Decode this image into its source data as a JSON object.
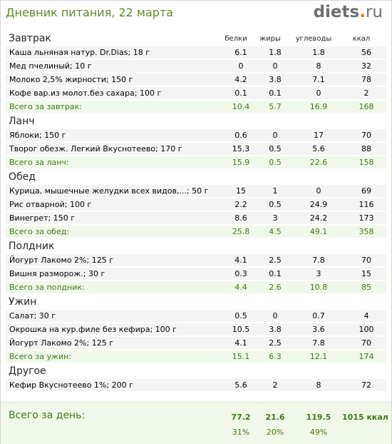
{
  "header": {
    "title": "Дневник питания, 22 марта",
    "logo_main": "diets",
    "logo_dot": ".",
    "logo_tld": "ru"
  },
  "columns": [
    "белки",
    "жиры",
    "углеводы",
    "ккал"
  ],
  "sections": [
    {
      "title": "Завтрак",
      "items": [
        {
          "name": "Каша льняная натур. Dr.Dias; 18 г",
          "protein": "6.1",
          "fat": "1.8",
          "carbs": "1.8",
          "kcal": "56"
        },
        {
          "name": "Мед пчелиный; 10 г",
          "protein": "0",
          "fat": "0",
          "carbs": "8",
          "kcal": "32"
        },
        {
          "name": "Молоко 2,5% жирности; 150 г",
          "protein": "4.2",
          "fat": "3.8",
          "carbs": "7.1",
          "kcal": "78"
        },
        {
          "name": "Кофе вар.из молот.без сахара; 100 г",
          "protein": "0.1",
          "fat": "0.1",
          "carbs": "0",
          "kcal": "2"
        }
      ],
      "total": {
        "label": "Всего за завтрак:",
        "protein": "10.4",
        "fat": "5.7",
        "carbs": "16.9",
        "kcal": "168"
      }
    },
    {
      "title": "Ланч",
      "items": [
        {
          "name": "Яблоки; 150 г",
          "protein": "0.6",
          "fat": "0",
          "carbs": "17",
          "kcal": "70"
        },
        {
          "name": "Творог обезж. Легкий Вкуснотеево; 170 г",
          "protein": "15.3",
          "fat": "0.5",
          "carbs": "5.6",
          "kcal": "88"
        }
      ],
      "total": {
        "label": "Всего за ланч:",
        "protein": "15.9",
        "fat": "0.5",
        "carbs": "22.6",
        "kcal": "158"
      }
    },
    {
      "title": "Обед",
      "items": [
        {
          "name": "Курица, мышечные желудки всех видов,...; 50 г",
          "protein": "15",
          "fat": "1",
          "carbs": "0",
          "kcal": "69"
        },
        {
          "name": "Рис отварной; 100 г",
          "protein": "2.2",
          "fat": "0.5",
          "carbs": "24.9",
          "kcal": "116"
        },
        {
          "name": "Винегрет; 150 г",
          "protein": "8.6",
          "fat": "3",
          "carbs": "24.2",
          "kcal": "173"
        }
      ],
      "total": {
        "label": "Всего за обед:",
        "protein": "25.8",
        "fat": "4.5",
        "carbs": "49.1",
        "kcal": "358"
      }
    },
    {
      "title": "Полдник",
      "items": [
        {
          "name": "Йогурт Лакомо 2%; 125 г",
          "protein": "4.1",
          "fat": "2.5",
          "carbs": "7.8",
          "kcal": "70"
        },
        {
          "name": "Вишня разморож.; 30 г",
          "protein": "0.3",
          "fat": "0.1",
          "carbs": "3",
          "kcal": "15"
        }
      ],
      "total": {
        "label": "Всего за полдник:",
        "protein": "4.4",
        "fat": "2.6",
        "carbs": "10.8",
        "kcal": "85"
      }
    },
    {
      "title": "Ужин",
      "items": [
        {
          "name": "Салат; 30 г",
          "protein": "0.5",
          "fat": "0",
          "carbs": "0.7",
          "kcal": "4"
        },
        {
          "name": "Окрошка на кур.филе без кефира; 100 г",
          "protein": "10.5",
          "fat": "3.8",
          "carbs": "3.6",
          "kcal": "100"
        },
        {
          "name": "Йогурт Лакомо 2%; 125 г",
          "protein": "4.1",
          "fat": "2.5",
          "carbs": "7.8",
          "kcal": "70"
        }
      ],
      "total": {
        "label": "Всего за ужин:",
        "protein": "15.1",
        "fat": "6.3",
        "carbs": "12.1",
        "kcal": "174"
      }
    },
    {
      "title": "Другое",
      "items": [
        {
          "name": "Кефир Вкуснотеево 1%; 200 г",
          "protein": "5.6",
          "fat": "2",
          "carbs": "8",
          "kcal": "72"
        }
      ],
      "total": null
    }
  ],
  "day_total": {
    "label": "Всего за день:",
    "protein": "77.2",
    "fat": "21.6",
    "carbs": "119.5",
    "kcal": "1015 ккал",
    "protein_pct": "31%",
    "fat_pct": "20%",
    "carbs_pct": "49%"
  }
}
